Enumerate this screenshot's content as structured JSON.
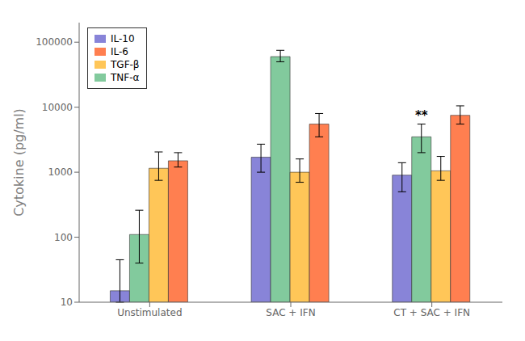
{
  "chart_data": {
    "type": "bar",
    "categories": [
      "Unstimulated",
      "SAC + IFN",
      "CT + SAC + IFN"
    ],
    "series": [
      {
        "name": "IL-10",
        "values": [
          15,
          1700,
          900
        ],
        "errors_low": [
          5,
          700,
          400
        ],
        "errors_high": [
          30,
          1000,
          500
        ]
      },
      {
        "name": "TNF-α",
        "values": [
          110,
          60000,
          3500
        ],
        "errors_low": [
          70,
          10000,
          1500
        ],
        "errors_high": [
          150,
          15000,
          2000
        ]
      },
      {
        "name": "TGF-β",
        "values": [
          1150,
          1000,
          1050
        ],
        "errors_low": [
          400,
          300,
          300
        ],
        "errors_high": [
          900,
          600,
          700
        ]
      },
      {
        "name": "IL-6",
        "values": [
          1500,
          5500,
          7500
        ],
        "errors_low": [
          300,
          2000,
          2000
        ],
        "errors_high": [
          500,
          2500,
          3000
        ]
      }
    ],
    "ylabel": "Cytokine (pg/ml)",
    "log": "y",
    "ylim": [
      10,
      200000
    ],
    "yticks": [
      10,
      100,
      1000,
      10000,
      100000
    ],
    "grid": false,
    "legend": "upper left",
    "annotations": [
      {
        "text": "**",
        "category": "CT + SAC + IFN",
        "series": "TNF-α"
      }
    ]
  }
}
